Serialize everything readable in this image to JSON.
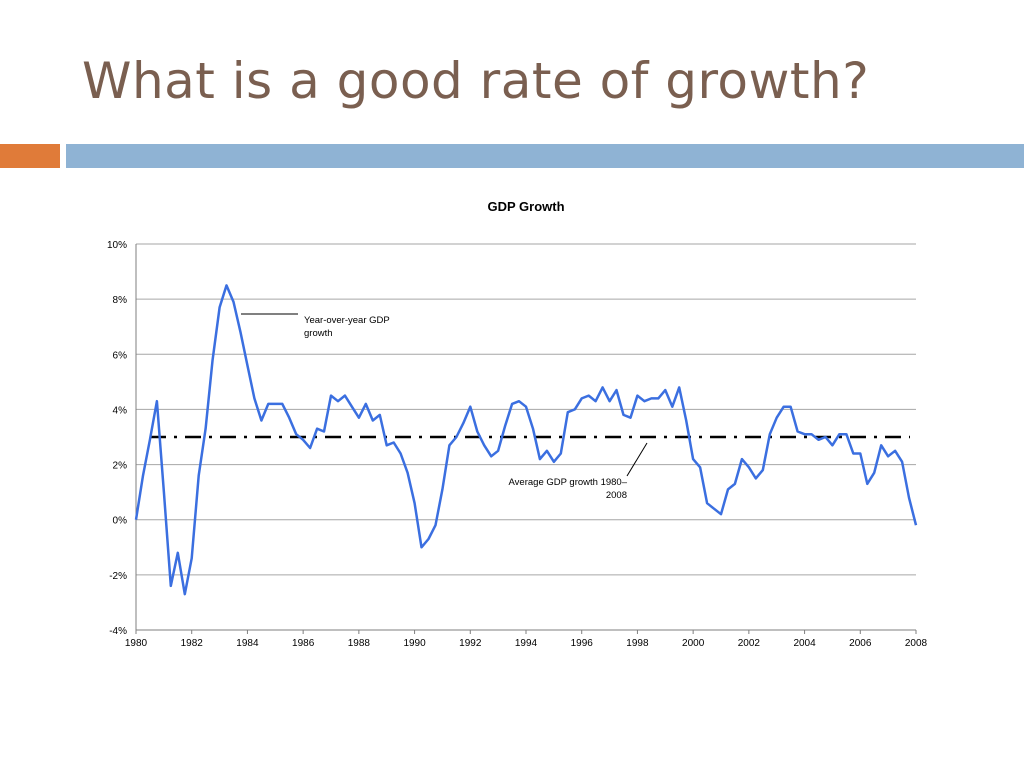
{
  "slide": {
    "title": "What is a good rate of growth?",
    "colors": {
      "title": "#7a5f50",
      "accent_orange": "#e07b39",
      "accent_blue": "#8fb3d4"
    }
  },
  "chart_data": {
    "type": "line",
    "title": "GDP Growth",
    "xlabel": "",
    "ylabel": "",
    "xlim": [
      1980,
      2008
    ],
    "ylim": [
      -4,
      10
    ],
    "x_ticks": [
      "1980",
      "1982",
      "1984",
      "1986",
      "1988",
      "1990",
      "1992",
      "1994",
      "1996",
      "1998",
      "2000",
      "2002",
      "2004",
      "2006",
      "2008"
    ],
    "y_ticks": [
      "-4%",
      "-2%",
      "0%",
      "2%",
      "4%",
      "6%",
      "8%",
      "10%"
    ],
    "grid": "horizontal",
    "legend": "none",
    "series": [
      {
        "color": "#3b6fe0",
        "x": [
          1980.0,
          1980.25,
          1980.5,
          1980.75,
          1981.0,
          1981.25,
          1981.5,
          1981.75,
          1982.0,
          1982.25,
          1982.5,
          1982.75,
          1983.0,
          1983.25,
          1983.5,
          1983.75,
          1984.0,
          1984.25,
          1984.5,
          1984.75,
          1985.0,
          1985.25,
          1985.5,
          1985.75,
          1986.0,
          1986.25,
          1986.5,
          1986.75,
          1987.0,
          1987.25,
          1987.5,
          1987.75,
          1988.0,
          1988.25,
          1988.5,
          1988.75,
          1989.0,
          1989.25,
          1989.5,
          1989.75,
          1990.0,
          1990.25,
          1990.5,
          1990.75,
          1991.0,
          1991.25,
          1991.5,
          1991.75,
          1992.0,
          1992.25,
          1992.5,
          1992.75,
          1993.0,
          1993.25,
          1993.5,
          1993.75,
          1994.0,
          1994.25,
          1994.5,
          1994.75,
          1995.0,
          1995.25,
          1995.5,
          1995.75,
          1996.0,
          1996.25,
          1996.5,
          1996.75,
          1997.0,
          1997.25,
          1997.5,
          1997.75,
          1998.0,
          1998.25,
          1998.5,
          1998.75,
          1999.0,
          1999.25,
          1999.5,
          1999.75,
          2000.0,
          2000.25,
          2000.5,
          2000.75,
          2001.0,
          2001.25,
          2001.5,
          2001.75,
          2002.0,
          2002.25,
          2002.5,
          2002.75,
          2003.0,
          2003.25,
          2003.5,
          2003.75,
          2004.0,
          2004.25,
          2004.5,
          2004.75,
          2005.0,
          2005.25,
          2005.5,
          2005.75,
          2006.0,
          2006.25,
          2006.5,
          2006.75,
          2007.0,
          2007.25,
          2007.5,
          2007.75,
          2008.0
        ],
        "values": [
          0.0,
          1.6,
          2.9,
          4.3,
          1.0,
          -2.4,
          -1.2,
          -2.7,
          -1.4,
          1.6,
          3.3,
          5.8,
          7.7,
          8.5,
          7.9,
          6.8,
          5.6,
          4.4,
          3.6,
          4.2,
          4.2,
          4.2,
          3.7,
          3.1,
          2.9,
          2.6,
          3.3,
          3.2,
          4.5,
          4.3,
          4.5,
          4.1,
          3.7,
          4.2,
          3.6,
          3.8,
          2.7,
          2.8,
          2.4,
          1.7,
          0.6,
          -1.0,
          -0.7,
          -0.2,
          1.1,
          2.7,
          3.0,
          3.5,
          4.1,
          3.2,
          2.7,
          2.3,
          2.5,
          3.4,
          4.2,
          4.3,
          4.1,
          3.3,
          2.2,
          2.5,
          2.1,
          2.4,
          3.9,
          4.0,
          4.4,
          4.5,
          4.3,
          4.8,
          4.3,
          4.7,
          3.8,
          3.7,
          4.5,
          4.3,
          4.4,
          4.4,
          4.7,
          4.1,
          4.8,
          3.6,
          2.2,
          1.9,
          0.6,
          0.4,
          0.2,
          1.1,
          1.3,
          2.2,
          1.9,
          1.5,
          1.8,
          3.1,
          3.7,
          4.1,
          4.1,
          3.2,
          3.1,
          3.1,
          2.9,
          3.0,
          2.7,
          3.1,
          3.1,
          2.4,
          2.4,
          1.3,
          1.7,
          2.7,
          2.3,
          2.5,
          2.1,
          0.8,
          -0.2
        ]
      },
      {
        "color": "#000000",
        "style": "dash-dot",
        "x": [
          1980,
          2008
        ],
        "values": [
          3.0,
          3.0
        ]
      }
    ],
    "annotations": [
      {
        "text_lines": [
          "Year-over-year GDP",
          "growth"
        ]
      },
      {
        "text_lines": [
          "Average GDP growth 1980–",
          "2008"
        ]
      }
    ]
  }
}
